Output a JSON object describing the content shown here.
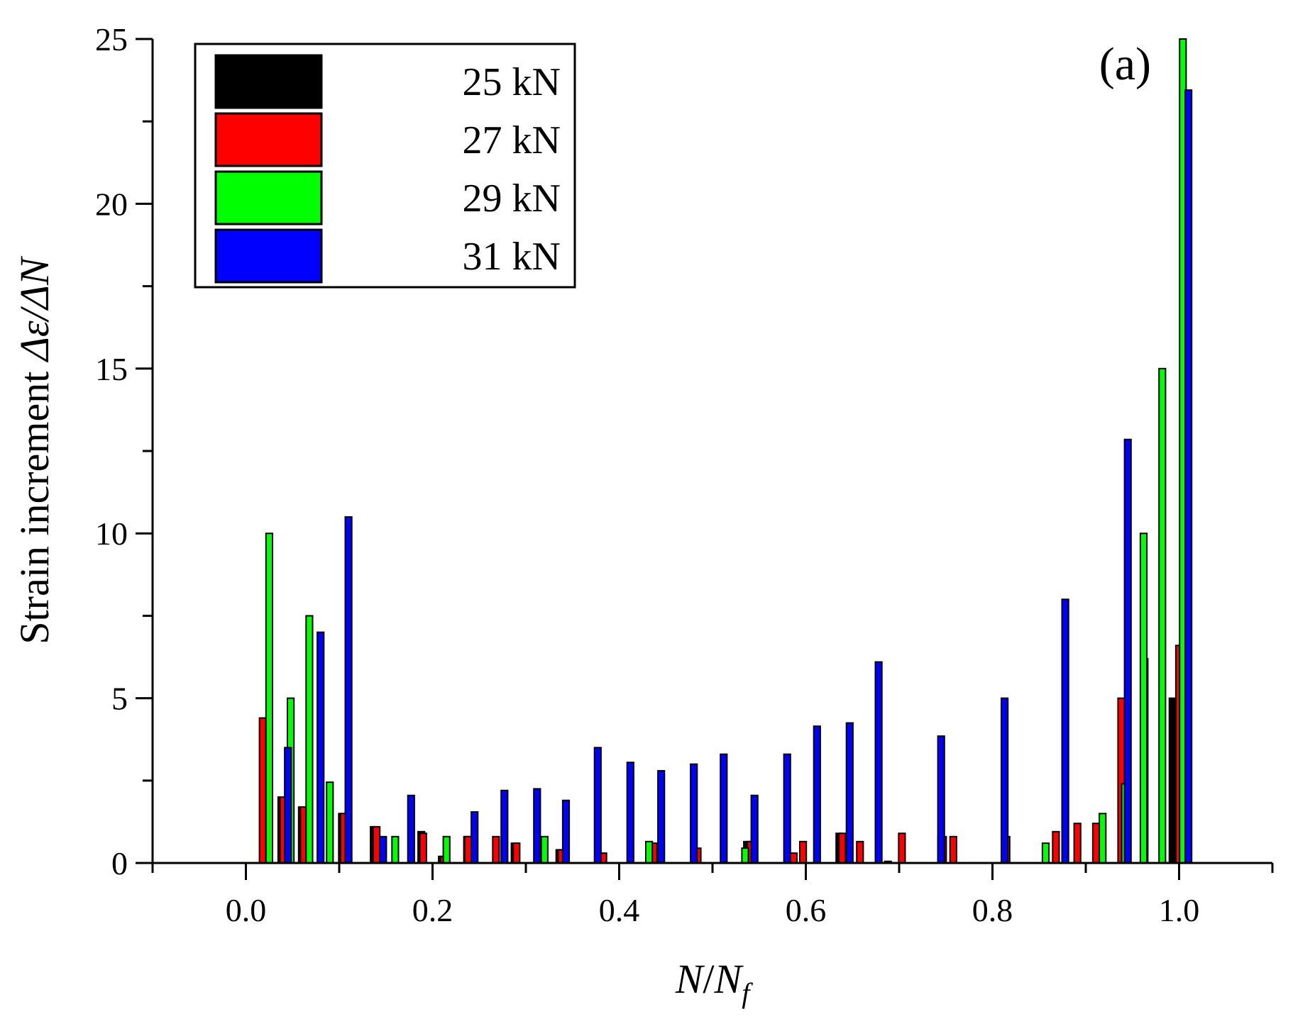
{
  "chart_data": {
    "type": "bar",
    "panel_label": "(a)",
    "xlabel": {
      "main": "N",
      "sep": "/",
      "base": "N",
      "sub": "f"
    },
    "ylabel": {
      "prefix": "Strain increment ",
      "expr": "Δε/ΔN"
    },
    "xlim": [
      -0.1,
      1.1
    ],
    "ylim": [
      0,
      25
    ],
    "xticks": [
      0.0,
      0.2,
      0.4,
      0.6,
      0.8,
      1.0
    ],
    "xtick_labels": [
      "0.0",
      "0.2",
      "0.4",
      "0.6",
      "0.8",
      "1.0"
    ],
    "yticks": [
      0,
      5,
      10,
      15,
      20,
      25
    ],
    "ytick_labels": [
      "0",
      "5",
      "10",
      "15",
      "20",
      "25"
    ],
    "bar_width": 0.007,
    "legend_position": "top-left",
    "grid": false,
    "series": [
      {
        "name": "25 kN",
        "color": "#000000",
        "x": [
          0.038,
          0.06,
          0.103,
          0.137,
          0.188,
          0.21,
          0.237,
          0.288,
          0.336,
          0.38,
          0.434,
          0.537,
          0.584,
          0.636,
          0.688,
          0.745,
          0.963,
          0.993
        ],
        "y": [
          2.0,
          1.7,
          1.5,
          1.1,
          0.95,
          0.2,
          0.8,
          0.6,
          0.4,
          0.3,
          0.6,
          0.65,
          0.3,
          0.9,
          0.05,
          0.8,
          6.2,
          5.0
        ]
      },
      {
        "name": "27 kN",
        "color": "#ff0000",
        "x": [
          0.018,
          0.04,
          0.062,
          0.105,
          0.14,
          0.19,
          0.212,
          0.238,
          0.268,
          0.29,
          0.338,
          0.383,
          0.437,
          0.484,
          0.541,
          0.587,
          0.597,
          0.639,
          0.658,
          0.703,
          0.747,
          0.758,
          0.815,
          0.868,
          0.891,
          0.911,
          0.938,
          1.0
        ],
        "y": [
          4.4,
          2.0,
          1.7,
          1.5,
          1.1,
          0.9,
          0.2,
          0.8,
          0.8,
          0.6,
          0.4,
          0.3,
          0.6,
          0.45,
          0.65,
          0.3,
          0.65,
          0.9,
          0.65,
          0.9,
          0.8,
          0.8,
          0.8,
          0.95,
          1.2,
          1.2,
          5.0,
          6.6
        ]
      },
      {
        "name": "29 kN",
        "color": "#00ff00",
        "x": [
          0.025,
          0.048,
          0.068,
          0.09,
          0.16,
          0.215,
          0.32,
          0.432,
          0.535,
          0.857,
          0.918,
          0.942,
          0.962,
          0.982,
          1.004
        ],
        "y": [
          10.0,
          5.0,
          7.5,
          2.45,
          0.8,
          0.8,
          0.8,
          0.65,
          0.45,
          0.6,
          1.5,
          2.4,
          10.0,
          15.0,
          25.0
        ]
      },
      {
        "name": "31 kN",
        "color": "#0000ff",
        "x": [
          0.045,
          0.08,
          0.11,
          0.147,
          0.177,
          0.245,
          0.277,
          0.312,
          0.343,
          0.377,
          0.412,
          0.445,
          0.48,
          0.512,
          0.545,
          0.58,
          0.612,
          0.647,
          0.678,
          0.745,
          0.813,
          0.878,
          0.945,
          1.01
        ],
        "y": [
          3.5,
          7.0,
          10.5,
          0.8,
          2.05,
          1.55,
          2.2,
          2.25,
          1.9,
          3.5,
          3.05,
          2.8,
          3.0,
          3.3,
          2.05,
          3.3,
          4.15,
          4.25,
          6.1,
          3.85,
          5.0,
          8.0,
          12.85,
          23.45
        ]
      }
    ]
  }
}
